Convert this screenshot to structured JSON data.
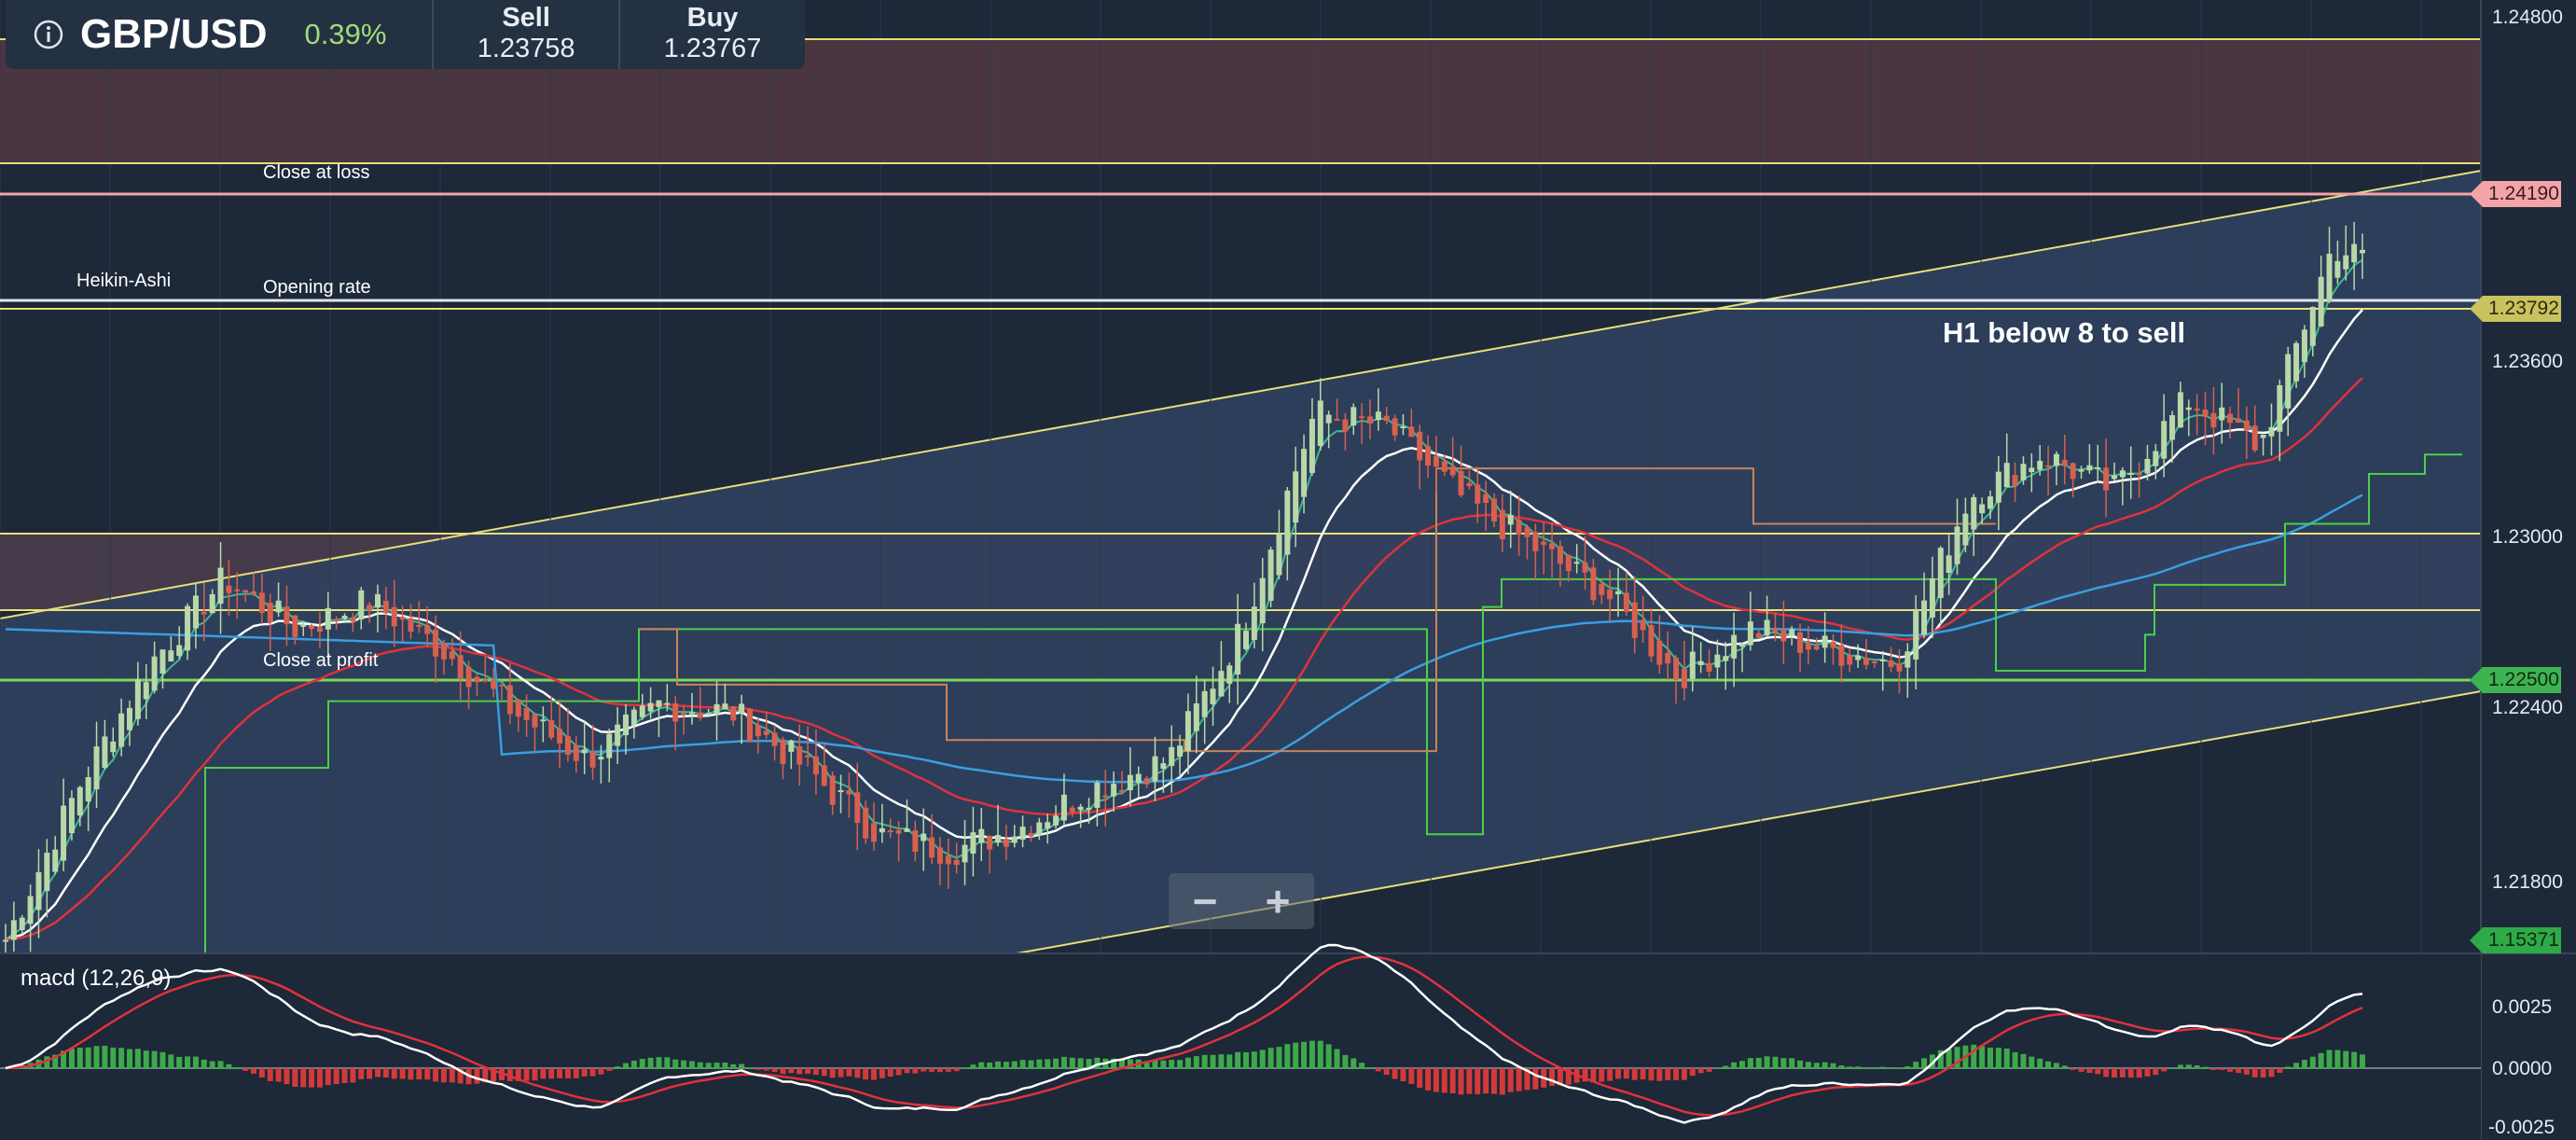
{
  "header": {
    "symbol": "GBP/USD",
    "change": "0.39%",
    "sell_label": "Sell",
    "sell_value": "1.23758",
    "buy_label": "Buy",
    "buy_value": "1.23767"
  },
  "chart_labels": {
    "close_at_loss": "Close at loss",
    "opening_rate": "Opening rate",
    "close_at_profit": "Close at profit",
    "chart_type": "Heikin-Ashi",
    "annotation": "H1 below 8 to sell"
  },
  "price_axis": {
    "ticks": [
      "1.24800",
      "1.23600",
      "1.23000",
      "1.22400",
      "1.21800"
    ]
  },
  "price_tags": {
    "close_at_loss": "1.24190",
    "opening_rate": "1.23792",
    "close_at_profit": "1.22500",
    "bottom": "1.15371"
  },
  "indicator": {
    "label": "macd (12,26,9)",
    "ticks": [
      "0.0025",
      "0.0000",
      "-0.0025"
    ]
  },
  "zoom": {
    "minus": "−",
    "plus": "+"
  },
  "colors": {
    "background": "#1d2838",
    "channel_fill": "#2f4260",
    "channel_line": "#e8df7a",
    "resistance_zone": "#4a3641",
    "loss_line": "#f3a4a8",
    "profit_line": "#7fd65b",
    "candle_up": "#b8d8a8",
    "candle_down": "#d7604f",
    "ema_fast": "#3fb88e",
    "ema_white": "#ffffff",
    "ema_red": "#e0323c",
    "ema_blue": "#3a9ee0"
  },
  "chart_data": {
    "type": "candlestick",
    "instrument": "GBP/USD",
    "ylim": [
      1.2145,
      1.2489
    ],
    "close_trend": [
      1.215,
      1.2205,
      1.225,
      1.228,
      1.2262,
      1.2272,
      1.2255,
      1.2232,
      1.2215,
      1.2235,
      1.2232,
      1.2212,
      1.2188,
      1.2182,
      1.2191,
      1.2205,
      1.2215,
      1.2262,
      1.234,
      1.2335,
      1.231,
      1.2292,
      1.2275,
      1.2245,
      1.2262,
      1.2255,
      1.225,
      1.231,
      1.2325,
      1.2312,
      1.2345,
      1.2328,
      1.24,
      1.239,
      1.2379
    ]
  }
}
